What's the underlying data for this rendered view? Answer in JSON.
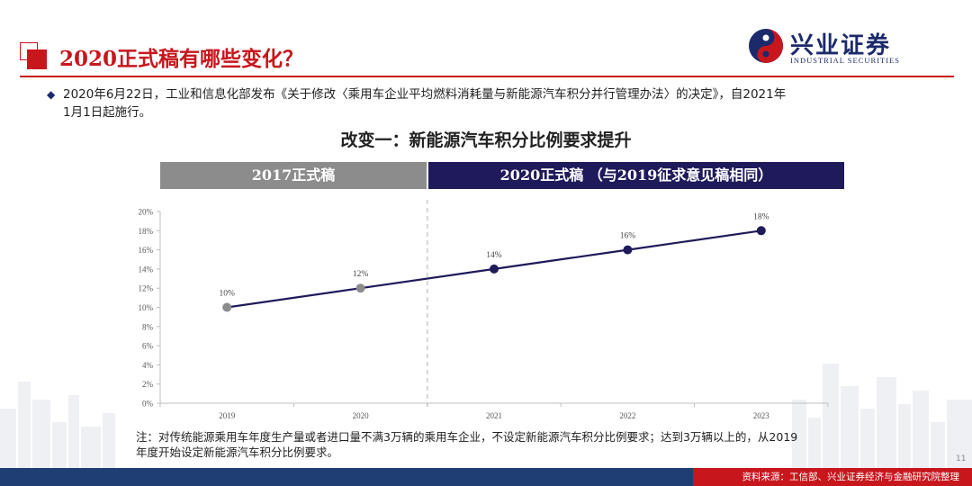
{
  "header": {
    "title": "2020正式稿有哪些变化？",
    "logo_cn": "兴业证券",
    "logo_en": "INDUSTRIAL SECURITIES"
  },
  "bullet": {
    "line1": "2020年6月22日，工业和信息化部发布《关于修改〈乘用车企业平均燃料消耗量与新能源汽车积分并行管理办法〉的决定》，自2021年",
    "line2": "1月1日起施行。"
  },
  "subtitle": "改变一：新能源汽车积分比例要求提升",
  "bands": {
    "left": "2017正式稿",
    "right": "2020正式稿 （与2019征求意见稿相同）"
  },
  "chart_data": {
    "type": "line",
    "x": [
      "2019",
      "2020",
      "2021",
      "2022",
      "2023"
    ],
    "values": [
      10,
      12,
      14,
      16,
      18
    ],
    "data_labels": [
      "10%",
      "12%",
      "14%",
      "16%",
      "18%"
    ],
    "y_ticks": [
      "0%",
      "2%",
      "4%",
      "6%",
      "8%",
      "10%",
      "12%",
      "14%",
      "16%",
      "18%",
      "20%"
    ],
    "ylim": [
      0,
      20
    ],
    "marker_colors": [
      "#8c8c8c",
      "#8c8c8c",
      "#1f1a5a",
      "#1f1a5a",
      "#1f1a5a"
    ],
    "line_color": "#1f1a5a",
    "title": "",
    "xlabel": "",
    "ylabel": "",
    "grid": false
  },
  "note": {
    "line1": "注：对传统能源乘用车年度生产量或者进口量不满3万辆的乘用车企业，不设定新能源汽车积分比例要求；达到3万辆以上的，从2019",
    "line2": "年度开始设定新能源汽车积分比例要求。"
  },
  "page_number": "11",
  "footer": {
    "source": "资料来源：工信部、兴业证券经济与金融研究院整理"
  },
  "colors": {
    "brand_red": "#c8161d",
    "brand_navy": "#1f1a5a",
    "footer_blue": "#1f3f74",
    "gray": "#8c8c8c"
  }
}
